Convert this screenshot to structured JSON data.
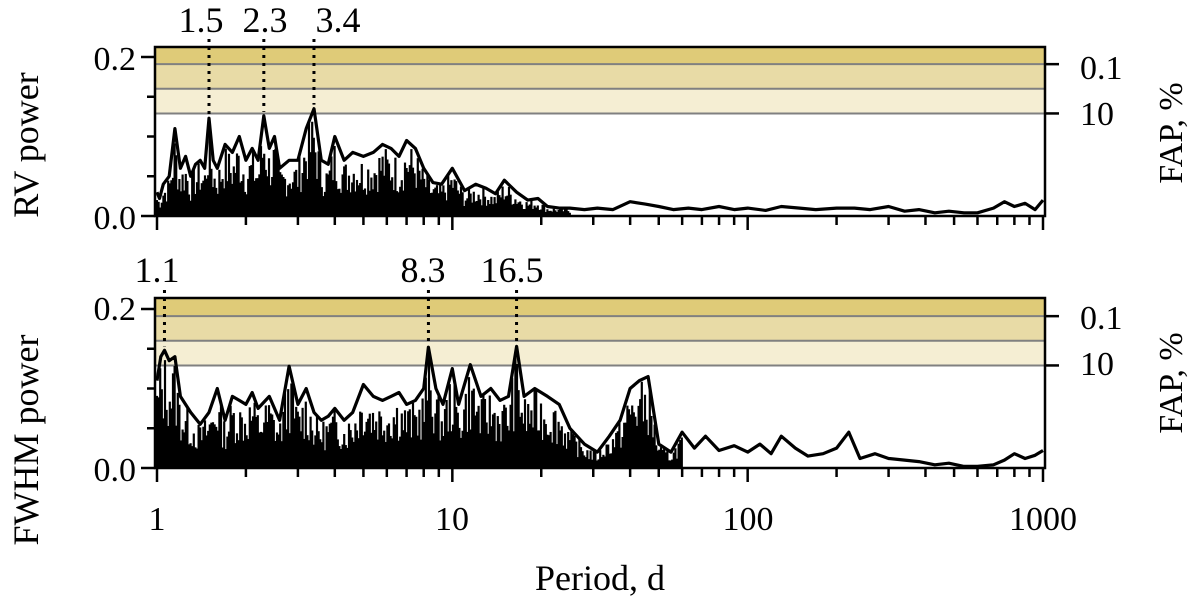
{
  "chart_data": [
    {
      "type": "line",
      "panel": "top",
      "title": "",
      "xlabel": "Period, d",
      "ylabel": "RV power",
      "ylabel_right": "FAP, %",
      "xscale": "log",
      "xlim": [
        1,
        1000
      ],
      "ylim": [
        0.0,
        0.21
      ],
      "yticks": [
        0.0,
        0.2
      ],
      "yticks_minor": [
        0.05,
        0.1,
        0.15
      ],
      "right_ticks": [
        {
          "label": "0.1",
          "power": 0.191
        },
        {
          "label": "10",
          "power": 0.129
        }
      ],
      "fap_levels": [
        0.191,
        0.16,
        0.129
      ],
      "fap_band_colors": [
        "#dfcb78",
        "#e8dba6",
        "#f5eed3"
      ],
      "annotations": [
        {
          "label": "1.5",
          "period": 1.5,
          "peak_power": 0.123
        },
        {
          "label": "2.3",
          "period": 2.3,
          "peak_power": 0.126
        },
        {
          "label": "3.4",
          "period": 3.4,
          "peak_power": 0.135
        }
      ],
      "series": [
        {
          "name": "RV periodogram",
          "x": [
            1.0,
            1.02,
            1.05,
            1.1,
            1.15,
            1.2,
            1.25,
            1.3,
            1.35,
            1.4,
            1.45,
            1.5,
            1.55,
            1.6,
            1.7,
            1.8,
            1.9,
            2.0,
            2.1,
            2.2,
            2.3,
            2.4,
            2.5,
            2.6,
            2.8,
            3.0,
            3.2,
            3.4,
            3.6,
            3.8,
            4.0,
            4.3,
            4.6,
            5.0,
            5.4,
            5.8,
            6.2,
            6.6,
            7.0,
            7.5,
            8.0,
            8.6,
            9.2,
            10.0,
            11,
            12,
            13,
            14,
            15,
            16.5,
            18,
            19.5,
            21,
            23,
            25,
            28,
            31,
            35,
            40,
            45,
            50,
            56,
            63,
            70,
            80,
            90,
            100,
            115,
            130,
            150,
            170,
            200,
            230,
            260,
            300,
            340,
            380,
            430,
            480,
            540,
            600,
            680,
            740,
            800,
            870,
            940,
            1000
          ],
          "y": [
            0.03,
            0.022,
            0.04,
            0.05,
            0.11,
            0.06,
            0.075,
            0.05,
            0.065,
            0.07,
            0.06,
            0.123,
            0.07,
            0.06,
            0.09,
            0.08,
            0.1,
            0.07,
            0.085,
            0.07,
            0.126,
            0.085,
            0.1,
            0.06,
            0.07,
            0.07,
            0.11,
            0.135,
            0.07,
            0.065,
            0.1,
            0.07,
            0.08,
            0.075,
            0.08,
            0.09,
            0.085,
            0.075,
            0.095,
            0.085,
            0.06,
            0.042,
            0.04,
            0.06,
            0.032,
            0.04,
            0.035,
            0.028,
            0.045,
            0.03,
            0.02,
            0.022,
            0.012,
            0.01,
            0.01,
            0.008,
            0.01,
            0.008,
            0.018,
            0.015,
            0.012,
            0.008,
            0.01,
            0.008,
            0.012,
            0.008,
            0.01,
            0.007,
            0.012,
            0.01,
            0.008,
            0.01,
            0.01,
            0.008,
            0.012,
            0.006,
            0.008,
            0.004,
            0.006,
            0.004,
            0.004,
            0.01,
            0.018,
            0.012,
            0.016,
            0.008,
            0.02
          ]
        }
      ]
    },
    {
      "type": "line",
      "panel": "bottom",
      "title": "",
      "xlabel": "Period, d",
      "ylabel": "FWHM power",
      "ylabel_right": "FAP, %",
      "xscale": "log",
      "xlim": [
        1,
        1000
      ],
      "ylim": [
        0.0,
        0.21
      ],
      "yticks": [
        0.0,
        0.2
      ],
      "yticks_minor": [
        0.05,
        0.1,
        0.15
      ],
      "right_ticks": [
        {
          "label": "0.1",
          "power": 0.191
        },
        {
          "label": "10",
          "power": 0.129
        }
      ],
      "fap_levels": [
        0.191,
        0.16,
        0.129
      ],
      "fap_band_colors": [
        "#dfcb78",
        "#e8dba6",
        "#f5eed3"
      ],
      "annotations": [
        {
          "label": "1.1",
          "period": 1.06,
          "peak_power": 0.148
        },
        {
          "label": "8.3",
          "period": 8.3,
          "peak_power": 0.152
        },
        {
          "label": "16.5",
          "period": 16.5,
          "peak_power": 0.153
        }
      ],
      "series": [
        {
          "name": "FWHM periodogram",
          "x": [
            1.0,
            1.03,
            1.06,
            1.1,
            1.15,
            1.2,
            1.3,
            1.4,
            1.5,
            1.6,
            1.7,
            1.8,
            1.9,
            2.0,
            2.1,
            2.2,
            2.4,
            2.6,
            2.8,
            3.0,
            3.2,
            3.4,
            3.6,
            3.8,
            4.0,
            4.3,
            4.6,
            5.0,
            5.4,
            5.8,
            6.2,
            6.6,
            7.0,
            7.5,
            8.0,
            8.3,
            8.8,
            9.3,
            10,
            10.5,
            11.5,
            12.5,
            13.5,
            14.5,
            15.5,
            16.5,
            17.5,
            19,
            21,
            23,
            25,
            28,
            31,
            34,
            37,
            40,
            43,
            46,
            50,
            55,
            60,
            66,
            72,
            80,
            90,
            100,
            110,
            120,
            130,
            145,
            160,
            180,
            200,
            220,
            240,
            270,
            300,
            340,
            380,
            430,
            480,
            540,
            600,
            680,
            740,
            800,
            870,
            940,
            1000
          ],
          "y": [
            0.11,
            0.14,
            0.148,
            0.135,
            0.14,
            0.09,
            0.07,
            0.055,
            0.07,
            0.1,
            0.06,
            0.09,
            0.085,
            0.08,
            0.095,
            0.075,
            0.09,
            0.06,
            0.128,
            0.08,
            0.1,
            0.07,
            0.06,
            0.065,
            0.075,
            0.06,
            0.07,
            0.105,
            0.09,
            0.085,
            0.09,
            0.095,
            0.08,
            0.085,
            0.1,
            0.152,
            0.1,
            0.08,
            0.125,
            0.08,
            0.13,
            0.09,
            0.1,
            0.085,
            0.09,
            0.153,
            0.09,
            0.1,
            0.09,
            0.08,
            0.05,
            0.03,
            0.02,
            0.04,
            0.06,
            0.1,
            0.11,
            0.115,
            0.03,
            0.02,
            0.045,
            0.025,
            0.04,
            0.022,
            0.028,
            0.02,
            0.03,
            0.018,
            0.04,
            0.025,
            0.015,
            0.018,
            0.025,
            0.045,
            0.012,
            0.018,
            0.012,
            0.01,
            0.008,
            0.004,
            0.006,
            0.002,
            0.002,
            0.004,
            0.01,
            0.018,
            0.012,
            0.016,
            0.022
          ]
        }
      ]
    }
  ],
  "figure": {
    "xtick_labels": [
      "1",
      "10",
      "100",
      "1000"
    ],
    "xlabel": "Period, d",
    "top": {
      "ylabel": "RV power",
      "ytick_labels": [
        "0.0",
        "0.2"
      ],
      "right_tick_labels": [
        "0.1",
        "10"
      ],
      "right_label": "FAP, %",
      "peak_labels": [
        "1.5",
        "2.3",
        "3.4"
      ]
    },
    "bottom": {
      "ylabel": "FWHM power",
      "ytick_labels": [
        "0.0",
        "0.2"
      ],
      "right_tick_labels": [
        "0.1",
        "10"
      ],
      "right_label": "FAP, %",
      "peak_labels": [
        "1.1",
        "8.3",
        "16.5"
      ]
    },
    "colors": {
      "band_top": "#dfcb78",
      "band_mid": "#e8dba6",
      "band_low": "#f5eed3",
      "fap_line": "#808080",
      "series": "#000000"
    }
  }
}
